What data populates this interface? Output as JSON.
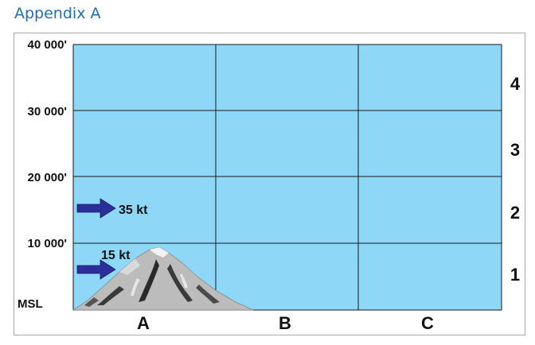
{
  "header": {
    "title": "Appendix A"
  },
  "altitudes": [
    {
      "label": "40 000'"
    },
    {
      "label": "30 000'"
    },
    {
      "label": "20 000'"
    },
    {
      "label": "10 000'"
    },
    {
      "label": "MSL"
    }
  ],
  "columns": [
    {
      "label": "A"
    },
    {
      "label": "B"
    },
    {
      "label": "C"
    }
  ],
  "rows": [
    {
      "label": "4"
    },
    {
      "label": "3"
    },
    {
      "label": "2"
    },
    {
      "label": "1"
    }
  ],
  "winds": [
    {
      "label": "35 kt",
      "icon": "wind-arrow-icon"
    },
    {
      "label": "15 kt",
      "icon": "wind-arrow-icon"
    }
  ],
  "colors": {
    "sky": "#8fd7f6",
    "arrow": "#2a2f9a",
    "header": "#1f6eb5",
    "mountain": "#b5b5b5"
  }
}
